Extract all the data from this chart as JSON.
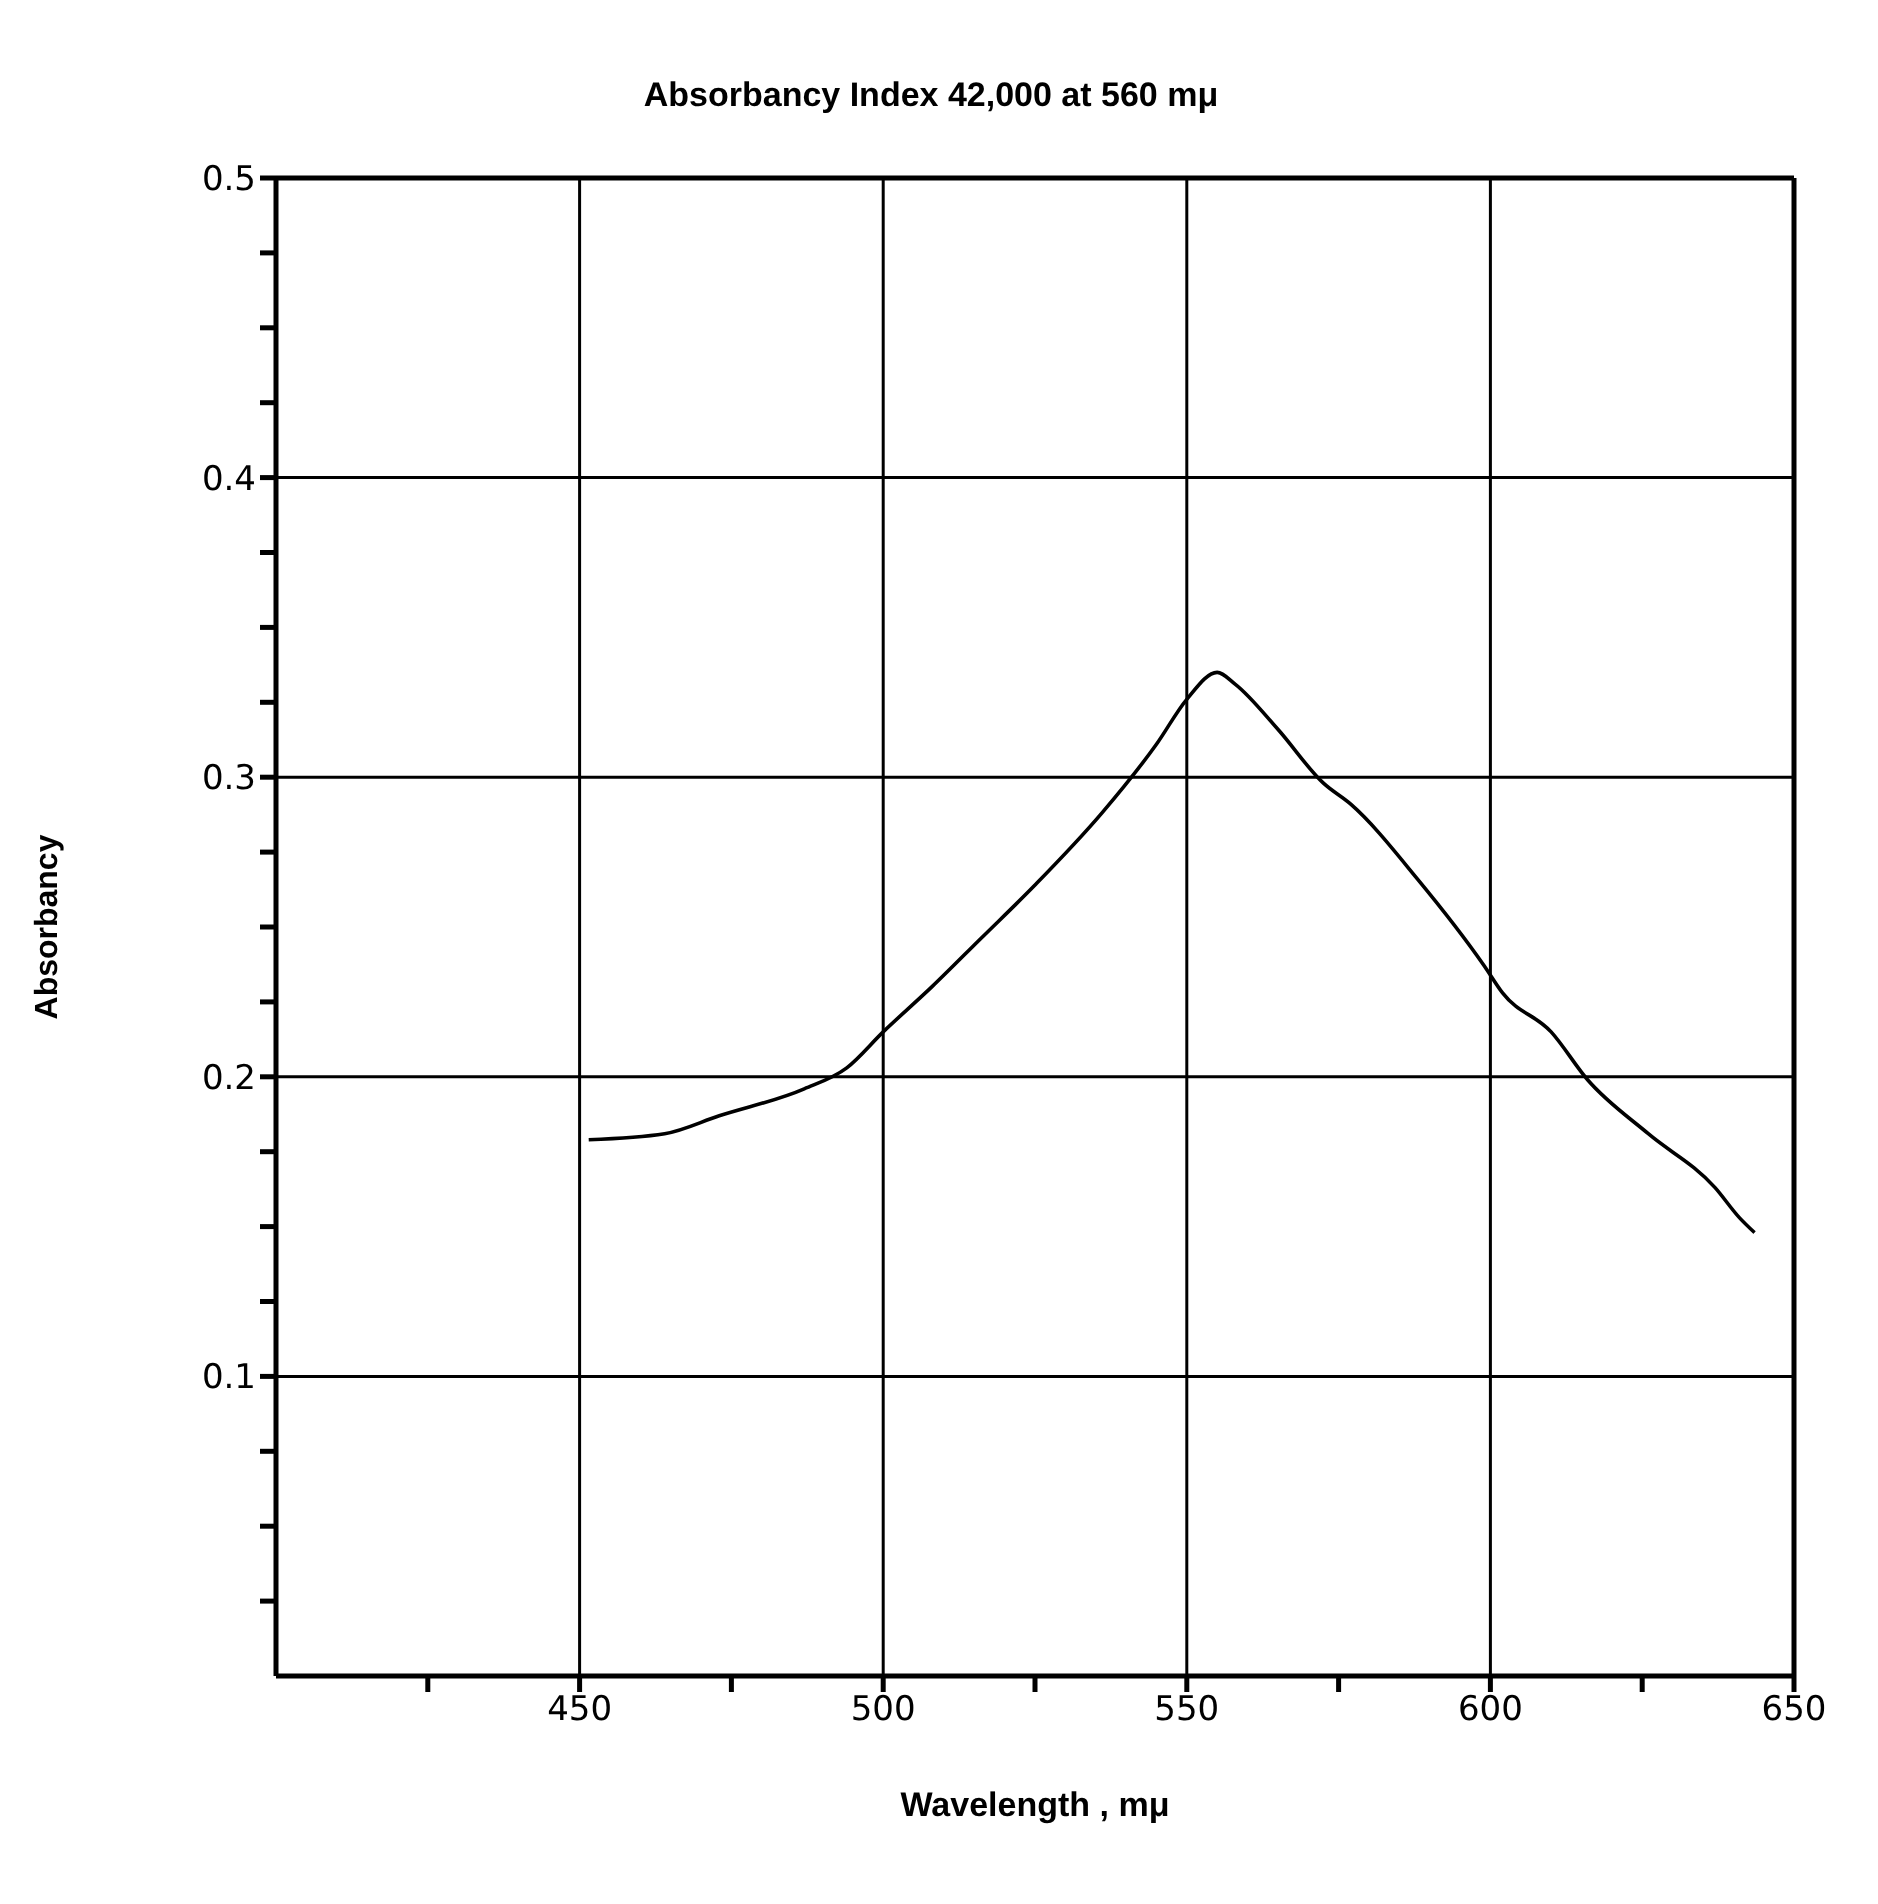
{
  "chart_data": {
    "type": "line",
    "title": "Absorbancy Index 42,000 at 560 mμ",
    "xlabel": "Wavelength , mμ",
    "ylabel": "Absorbancy",
    "x": [
      451.5,
      464,
      473,
      487,
      494,
      500,
      508,
      516,
      525,
      536,
      545,
      550,
      555,
      558,
      565,
      572.5,
      577,
      588,
      599,
      602,
      610,
      616,
      626,
      637,
      641,
      643.5
    ],
    "series": [
      {
        "color": "#000000",
        "values": [
          0.179,
          0.181,
          0.187,
          0.196,
          0.203,
          0.215,
          0.23,
          0.246,
          0.264,
          0.288,
          0.311,
          0.326,
          0.335,
          0.331,
          0.316,
          0.298,
          0.291,
          0.266,
          0.237,
          0.228,
          0.215,
          0.199,
          0.181,
          0.163,
          0.153,
          0.148
        ]
      }
    ],
    "xlim": [
      400,
      650
    ],
    "xticks": [
      {
        "value": 425,
        "label": null
      },
      450,
      {
        "value": 475,
        "label": null
      },
      500,
      {
        "value": 525,
        "label": null
      },
      550,
      {
        "value": 575,
        "label": null
      },
      600,
      {
        "value": 625,
        "label": null
      },
      650
    ],
    "ylim": [
      0,
      0.5
    ],
    "yticks": [
      {
        "value": 0.025,
        "label": null
      },
      {
        "value": 0.05,
        "label": null
      },
      {
        "value": 0.075,
        "label": null
      },
      0.1,
      {
        "value": 0.125,
        "label": null
      },
      {
        "value": 0.15,
        "label": null
      },
      {
        "value": 0.175,
        "label": null
      },
      0.2,
      {
        "value": 0.225,
        "label": null
      },
      {
        "value": 0.25,
        "label": null
      },
      {
        "value": 0.275,
        "label": null
      },
      0.3,
      {
        "value": 0.325,
        "label": null
      },
      {
        "value": 0.35,
        "label": null
      },
      {
        "value": 0.375,
        "label": null
      },
      0.4,
      {
        "value": 0.425,
        "label": null
      },
      {
        "value": 0.45,
        "label": null
      },
      {
        "value": 0.475,
        "label": null
      },
      0.5
    ],
    "grid": true
  }
}
